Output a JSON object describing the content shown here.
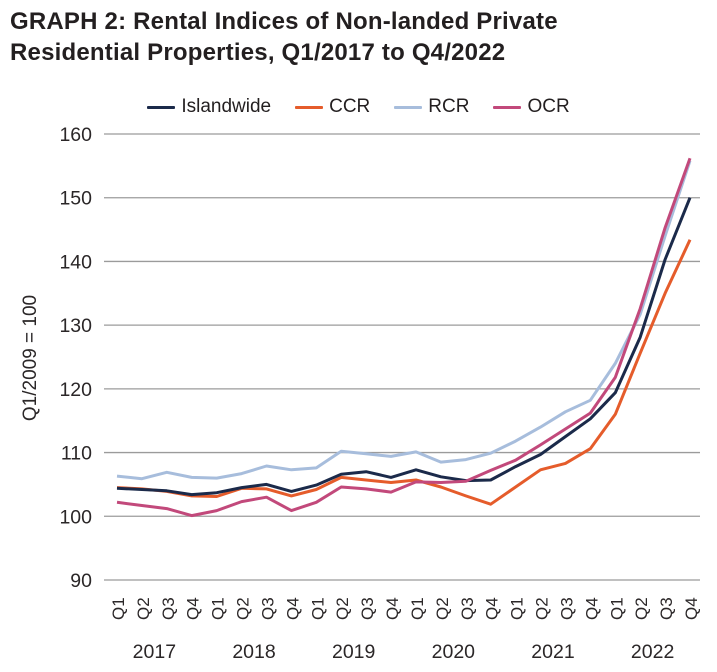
{
  "header": {
    "title": "GRAPH 2: Rental Indices of Non-landed Private Residential Properties, Q1/2017 to Q4/2022"
  },
  "chart_data": {
    "type": "line",
    "title": "GRAPH 2: Rental Indices of Non-landed Private Residential Properties, Q1/2017 to Q4/2022",
    "ylabel": "Q1/2009 = 100",
    "xlabel": "",
    "ylim": [
      90,
      160
    ],
    "yticks": [
      90,
      100,
      110,
      120,
      130,
      140,
      150,
      160
    ],
    "grid": "horizontal only",
    "legend_position": "top",
    "years": [
      "2017",
      "2018",
      "2019",
      "2020",
      "2021",
      "2022"
    ],
    "x_labels": [
      "Q1",
      "Q2",
      "Q3",
      "Q4",
      "Q1",
      "Q2",
      "Q3",
      "Q4",
      "Q1",
      "Q2",
      "Q3",
      "Q4",
      "Q1",
      "Q2",
      "Q3",
      "Q4",
      "Q1",
      "Q2",
      "Q3",
      "Q4",
      "Q1",
      "Q2",
      "Q3",
      "Q4"
    ],
    "series": [
      {
        "name": "Islandwide",
        "color": "#1b2a4a",
        "values": [
          104.4,
          104.2,
          104.0,
          103.4,
          103.7,
          104.5,
          105.0,
          103.9,
          104.9,
          106.6,
          107.0,
          106.1,
          107.3,
          106.2,
          105.6,
          105.7,
          107.8,
          109.7,
          112.5,
          115.3,
          119.4,
          128.1,
          140.3,
          150.0
        ]
      },
      {
        "name": "CCR",
        "color": "#e55c2b",
        "values": [
          104.5,
          104.3,
          103.9,
          103.2,
          103.1,
          104.4,
          104.3,
          103.2,
          104.2,
          106.1,
          105.7,
          105.3,
          105.7,
          104.6,
          103.2,
          101.9,
          104.6,
          107.3,
          108.3,
          110.6,
          116.0,
          125.6,
          135.0,
          143.4
        ]
      },
      {
        "name": "RCR",
        "color": "#a7bddc",
        "values": [
          106.3,
          105.9,
          106.9,
          106.1,
          106.0,
          106.7,
          107.9,
          107.3,
          107.6,
          110.2,
          109.8,
          109.4,
          110.1,
          108.5,
          108.9,
          109.9,
          111.8,
          114.0,
          116.4,
          118.2,
          124.0,
          131.7,
          144.0,
          155.8
        ]
      },
      {
        "name": "OCR",
        "color": "#c2497b",
        "values": [
          102.2,
          101.7,
          101.2,
          100.1,
          100.9,
          102.3,
          103.0,
          100.9,
          102.2,
          104.6,
          104.3,
          103.8,
          105.4,
          105.3,
          105.5,
          107.2,
          108.8,
          111.2,
          113.7,
          116.2,
          121.8,
          132.6,
          145.3,
          156.2
        ]
      }
    ],
    "draw_order": [
      "RCR",
      "CCR",
      "Islandwide",
      "OCR"
    ],
    "gridline_color": "#9b9b9b",
    "text_color": "#2b2728"
  }
}
